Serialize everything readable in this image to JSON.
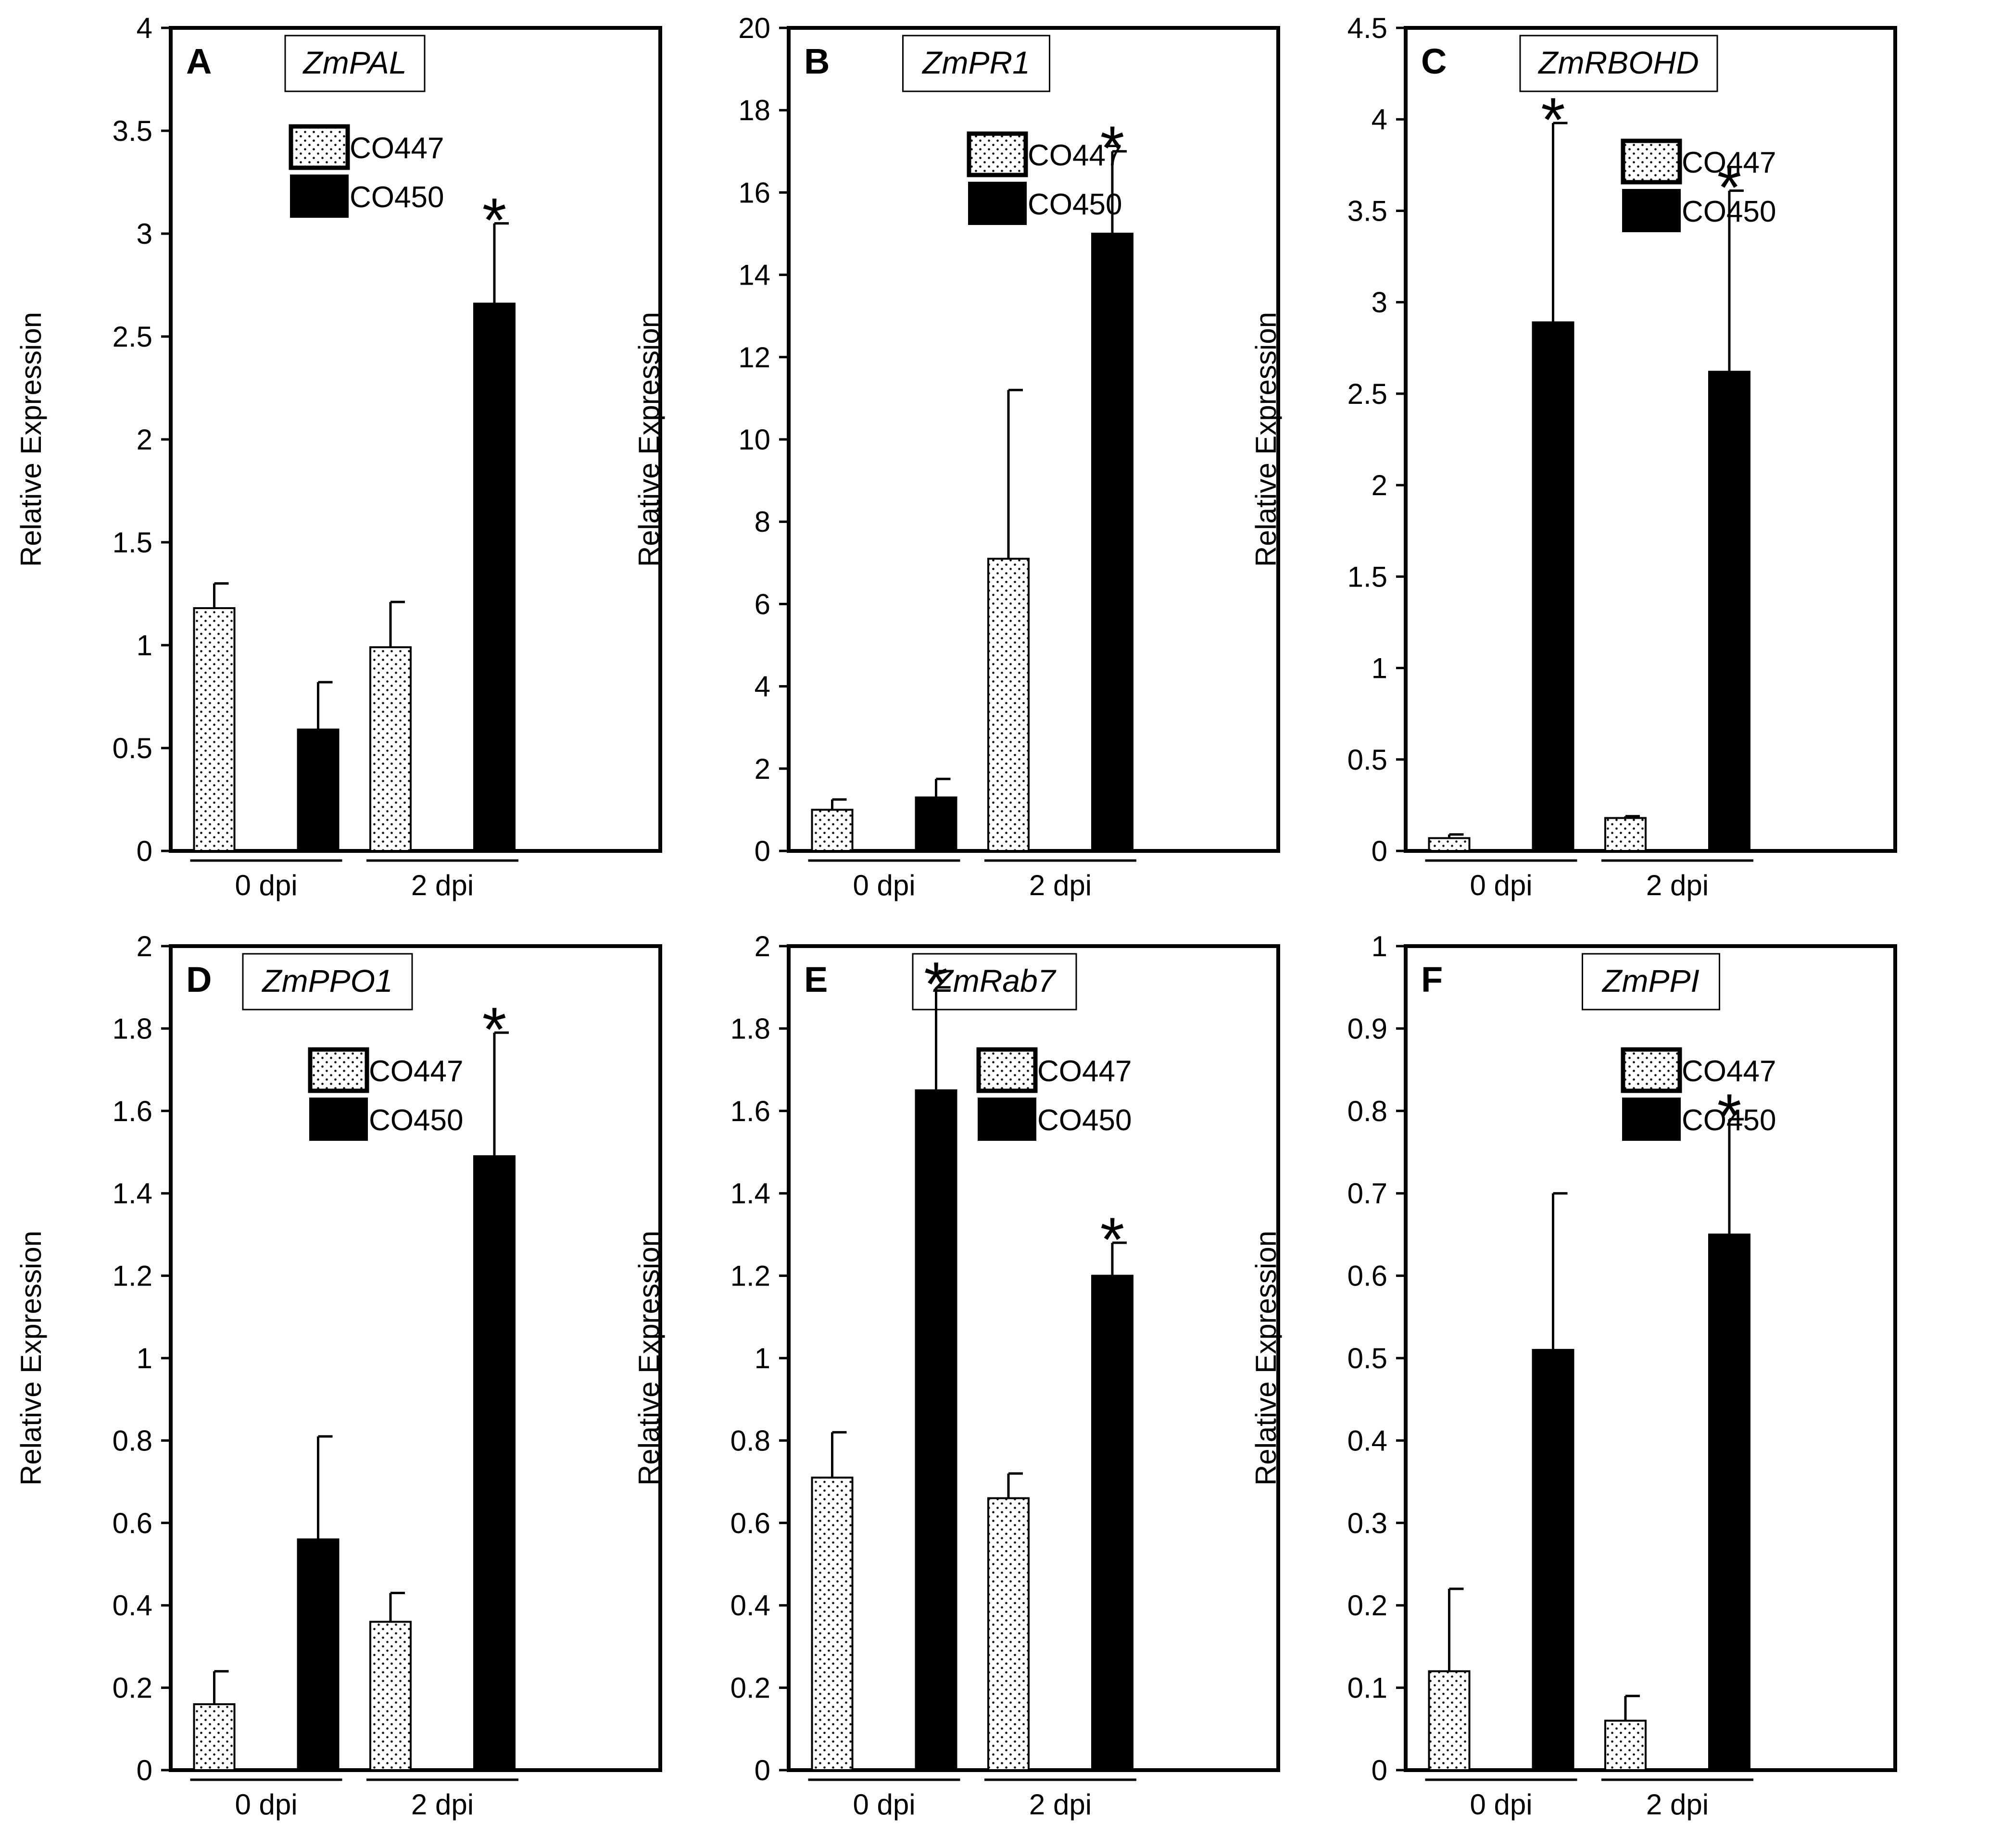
{
  "figure": {
    "legend_series": [
      "CO447",
      "CO450"
    ],
    "ylabel": "Relative Expression"
  },
  "chart_data": [
    {
      "type": "bar",
      "panel": "A",
      "title": "ZmPAL",
      "ylabel": "Relative Expression",
      "categories": [
        "0 dpi",
        "2 dpi"
      ],
      "ylim": [
        0,
        4
      ],
      "yticks": [
        "0",
        "0.5",
        "1",
        "1.5",
        "2",
        "2.5",
        "3",
        "3.5",
        "4"
      ],
      "series": [
        {
          "name": "CO447",
          "values": [
            1.18,
            0.99
          ],
          "errors": [
            0.12,
            0.22
          ]
        },
        {
          "name": "CO450",
          "values": [
            0.59,
            2.66
          ],
          "errors": [
            0.23,
            0.39
          ]
        }
      ],
      "significance": [
        [
          false,
          false
        ],
        [
          false,
          true
        ]
      ],
      "marker": "*"
    },
    {
      "type": "bar",
      "panel": "B",
      "title": "ZmPR1",
      "ylabel": "Relative Expression",
      "categories": [
        "0 dpi",
        "2 dpi"
      ],
      "ylim": [
        0,
        20
      ],
      "yticks": [
        "0",
        "2",
        "4",
        "6",
        "8",
        "10",
        "12",
        "14",
        "16",
        "18",
        "20"
      ],
      "series": [
        {
          "name": "CO447",
          "values": [
            1.0,
            7.1
          ],
          "errors": [
            0.25,
            4.1
          ]
        },
        {
          "name": "CO450",
          "values": [
            1.3,
            15.0
          ],
          "errors": [
            0.45,
            2.0
          ]
        }
      ],
      "significance": [
        [
          false,
          false
        ],
        [
          false,
          true
        ]
      ],
      "marker": "*"
    },
    {
      "type": "bar",
      "panel": "C",
      "title": "ZmRBOHD",
      "ylabel": "Relative Expression",
      "categories": [
        "0 dpi",
        "2 dpi"
      ],
      "ylim": [
        0,
        4.5
      ],
      "yticks": [
        "0",
        "0.5",
        "1",
        "1.5",
        "2",
        "2.5",
        "3",
        "3.5",
        "4",
        "4.5"
      ],
      "series": [
        {
          "name": "CO447",
          "values": [
            0.07,
            0.18
          ],
          "errors": [
            0.02,
            0.01
          ]
        },
        {
          "name": "CO450",
          "values": [
            2.89,
            2.62
          ],
          "errors": [
            1.09,
            0.99
          ]
        }
      ],
      "significance": [
        [
          false,
          false
        ],
        [
          true,
          true
        ]
      ],
      "marker": "*"
    },
    {
      "type": "bar",
      "panel": "D",
      "title": "ZmPPO1",
      "ylabel": "Relative Expression",
      "categories": [
        "0 dpi",
        "2 dpi"
      ],
      "ylim": [
        0,
        2
      ],
      "yticks": [
        "0",
        "0.2",
        "0.4",
        "0.6",
        "0.8",
        "1",
        "1.2",
        "1.4",
        "1.6",
        "1.8",
        "2"
      ],
      "series": [
        {
          "name": "CO447",
          "values": [
            0.16,
            0.36
          ],
          "errors": [
            0.08,
            0.07
          ]
        },
        {
          "name": "CO450",
          "values": [
            0.56,
            1.49
          ],
          "errors": [
            0.25,
            0.3
          ]
        }
      ],
      "significance": [
        [
          false,
          false
        ],
        [
          false,
          true
        ]
      ],
      "marker": "*"
    },
    {
      "type": "bar",
      "panel": "E",
      "title": "ZmRab7",
      "ylabel": "Relative Expression",
      "categories": [
        "0 dpi",
        "2 dpi"
      ],
      "ylim": [
        0,
        2
      ],
      "yticks": [
        "0",
        "0.2",
        "0.4",
        "0.6",
        "0.8",
        "1",
        "1.2",
        "1.4",
        "1.6",
        "1.8",
        "2"
      ],
      "series": [
        {
          "name": "CO447",
          "values": [
            0.71,
            0.66
          ],
          "errors": [
            0.11,
            0.06
          ]
        },
        {
          "name": "CO450",
          "values": [
            1.65,
            1.2
          ],
          "errors": [
            0.25,
            0.08
          ]
        }
      ],
      "significance": [
        [
          false,
          false
        ],
        [
          true,
          true
        ]
      ],
      "marker": "*"
    },
    {
      "type": "bar",
      "panel": "F",
      "title": "ZmPPI",
      "ylabel": "Relative Expression",
      "categories": [
        "0 dpi",
        "2 dpi"
      ],
      "ylim": [
        0,
        1
      ],
      "yticks": [
        "0",
        "0.1",
        "0.2",
        "0.3",
        "0.4",
        "0.5",
        "0.6",
        "0.7",
        "0.8",
        "0.9",
        "1"
      ],
      "series": [
        {
          "name": "CO447",
          "values": [
            0.12,
            0.06
          ],
          "errors": [
            0.1,
            0.03
          ]
        },
        {
          "name": "CO450",
          "values": [
            0.51,
            0.65
          ],
          "errors": [
            0.19,
            0.14
          ]
        }
      ],
      "significance": [
        [
          false,
          false
        ],
        [
          false,
          true
        ]
      ],
      "marker": "*"
    }
  ]
}
